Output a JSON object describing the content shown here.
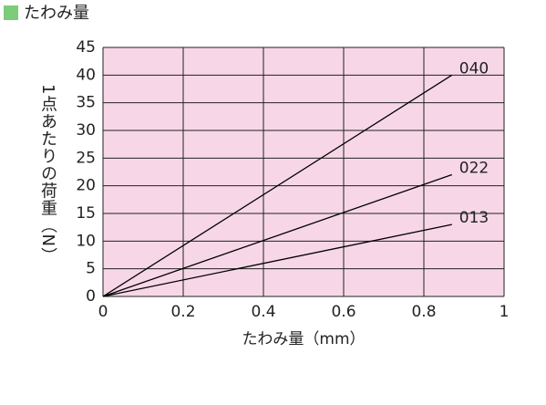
{
  "chart_data": {
    "type": "line",
    "title": "たわみ量",
    "xlabel": "たわみ量（mm）",
    "ylabel": "1点あたりの荷重（N）",
    "x": [
      0,
      0.87
    ],
    "series": [
      {
        "name": "040",
        "color": "#000000",
        "values": [
          0,
          40
        ]
      },
      {
        "name": "022",
        "color": "#000000",
        "values": [
          0,
          22
        ]
      },
      {
        "name": "013",
        "color": "#000000",
        "values": [
          0,
          13
        ]
      }
    ],
    "xlim": [
      0,
      1
    ],
    "xticks": [
      0,
      0.2,
      0.4,
      0.6,
      0.8,
      1
    ],
    "ylim": [
      0,
      45
    ],
    "yticks": [
      0,
      5,
      10,
      15,
      20,
      25,
      30,
      35,
      40,
      45
    ],
    "grid": true,
    "background": "#f7d7e7",
    "title_marker_color": "#7ccc7a"
  }
}
